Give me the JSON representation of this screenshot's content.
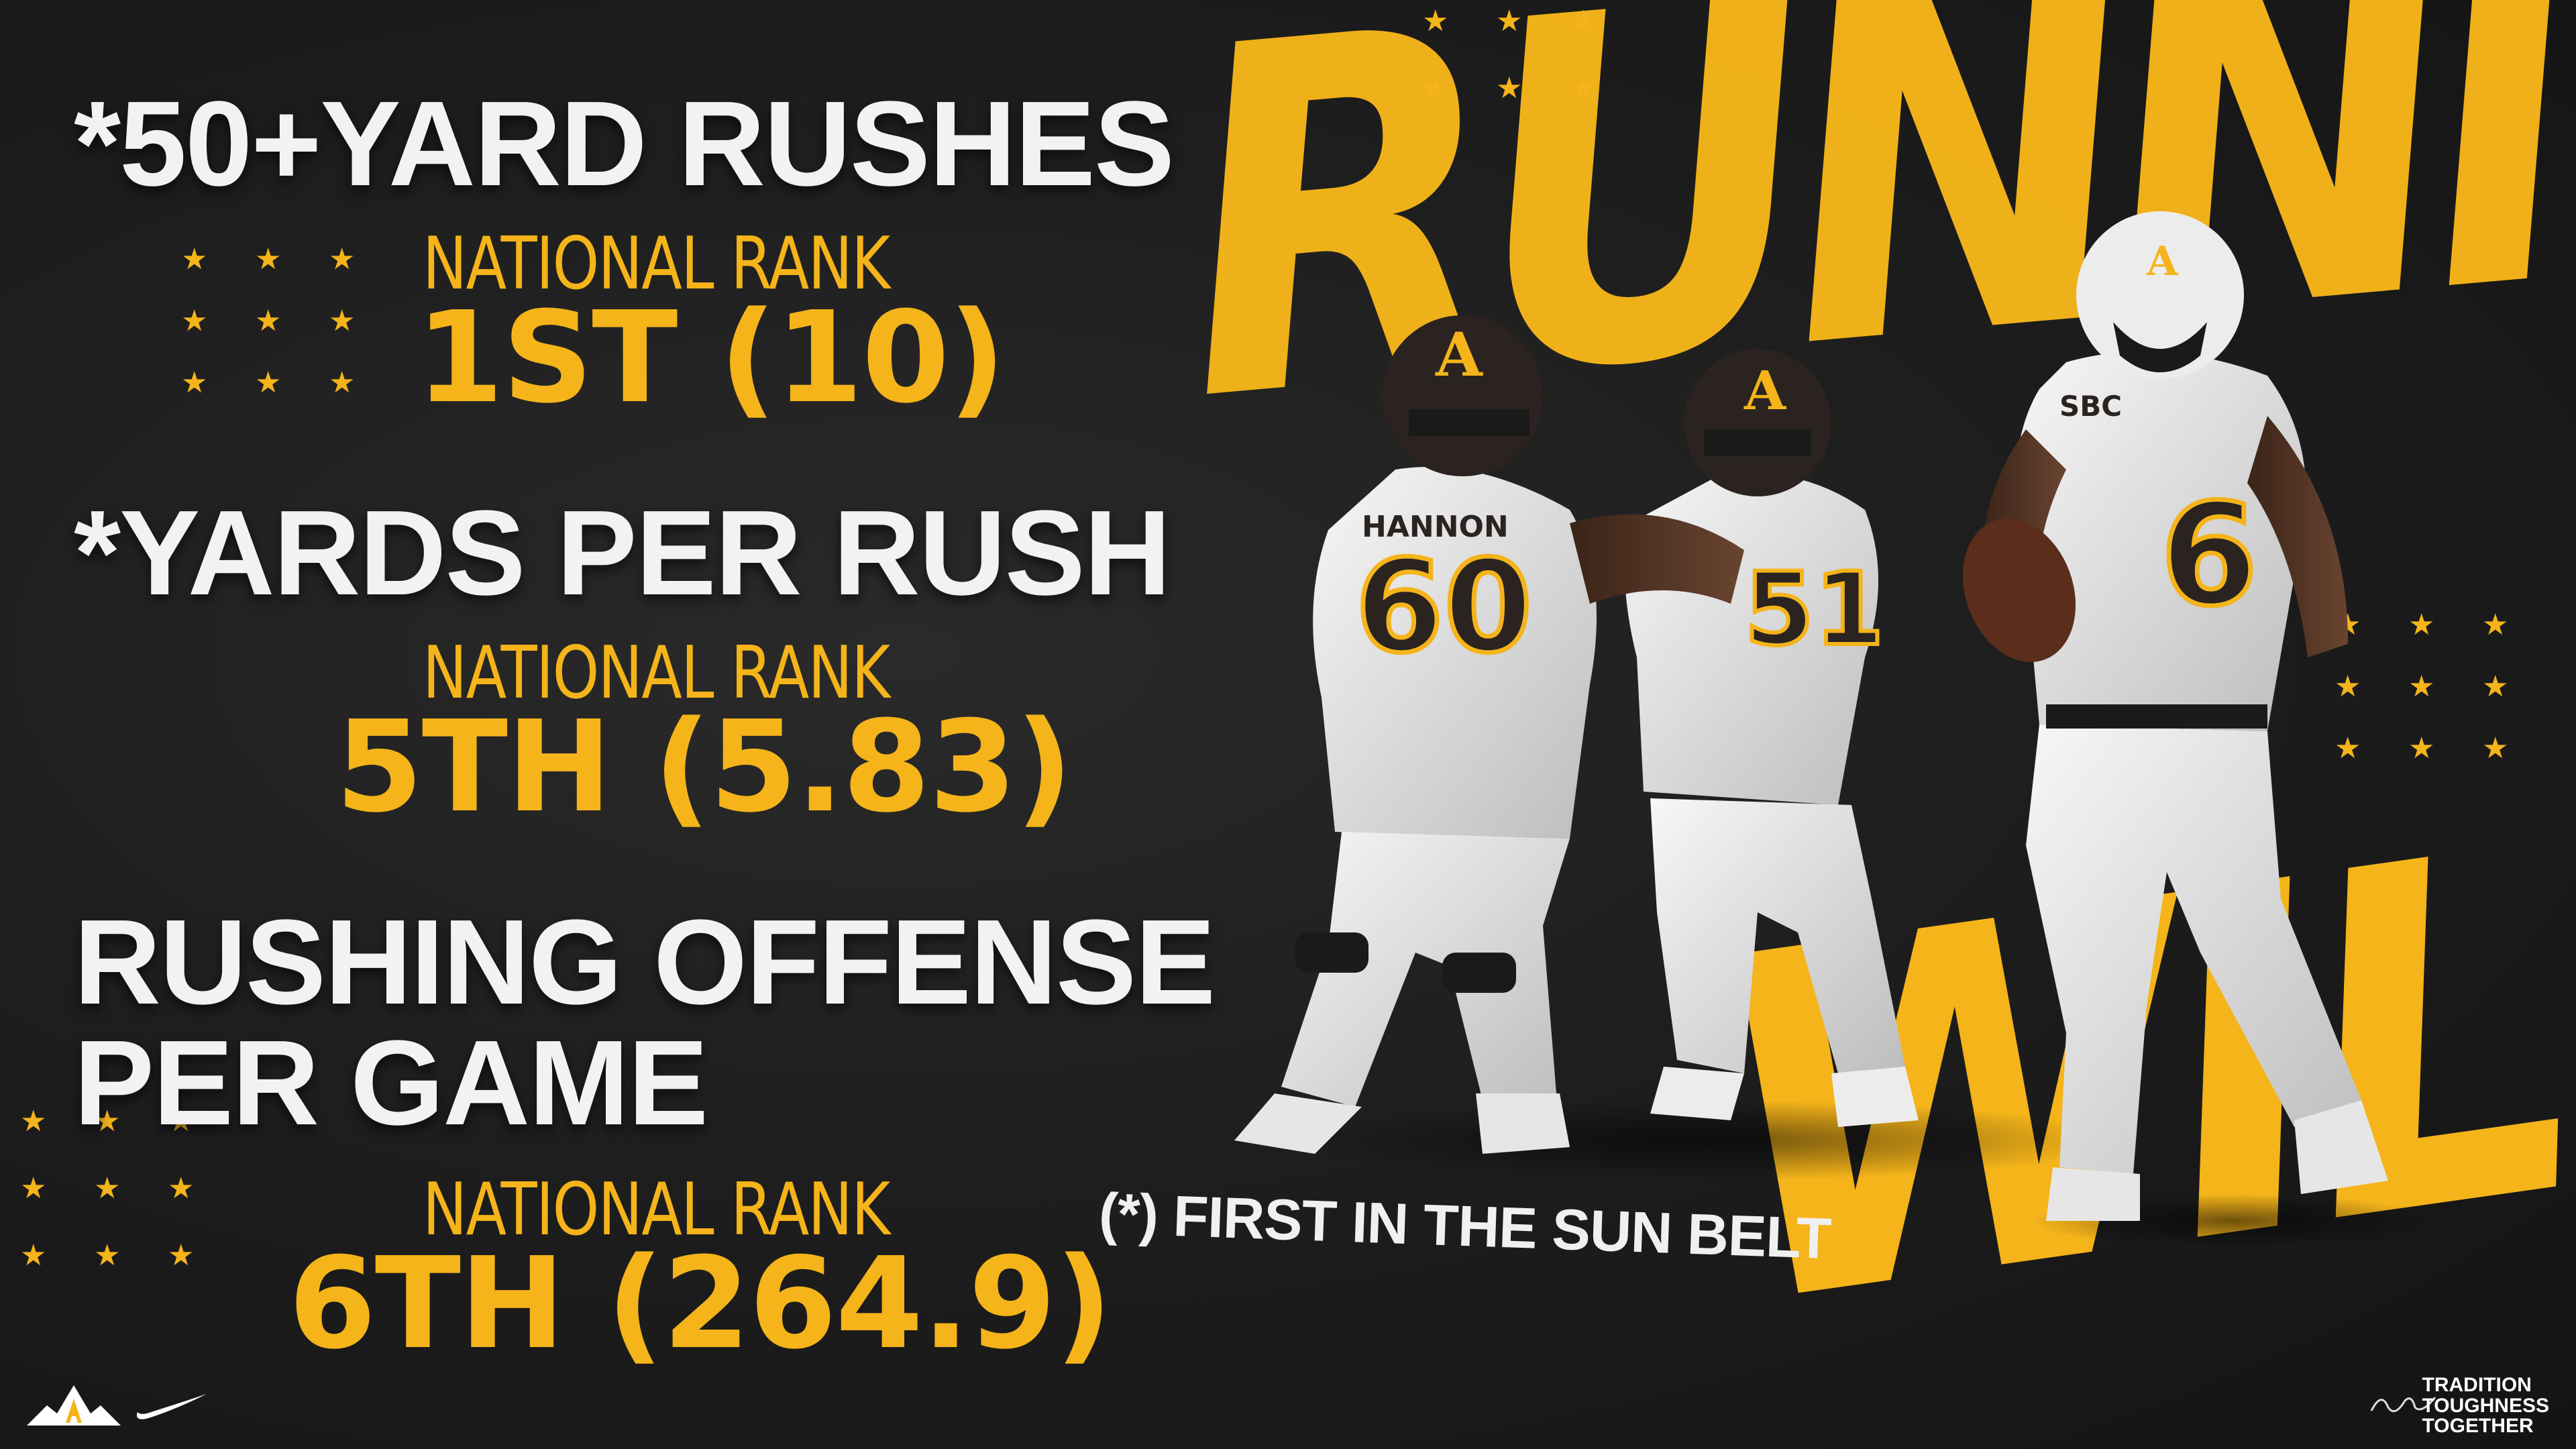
{
  "headline": {
    "word_1": "RUNNING",
    "word_2": "WILD"
  },
  "stats": [
    {
      "title": "*50+YARD RUSHES",
      "rank_label": "NATIONAL RANK",
      "rank_value": "1ST (10)"
    },
    {
      "title": "*YARDS PER RUSH",
      "rank_label": "NATIONAL RANK",
      "rank_value": "5TH (5.83)"
    },
    {
      "title": "RUSHING OFFENSE",
      "title_line_2": "PER GAME",
      "rank_label": "NATIONAL RANK",
      "rank_value": "6TH (264.9)"
    }
  ],
  "footnote": "(*) FIRST IN THE SUN BELT",
  "players": [
    {
      "jersey_number": "60",
      "name_on_jersey": "HANNON",
      "helmet_letter": "A"
    },
    {
      "jersey_number": "51",
      "helmet_letter": "A"
    },
    {
      "jersey_number": "6",
      "chest_patch": "SBC",
      "helmet_letter": "A"
    }
  ],
  "footer": {
    "team_logo_letter": "A",
    "tagline": "TRADITION\nTOUGHNESS\nTOGETHER"
  },
  "colors": {
    "accent": "#f4b41a",
    "background": "#1c1c1c",
    "text_light": "#f2f2f2"
  },
  "icons": [
    "star-icon",
    "mountain-a-logo-icon",
    "swoosh-logo-icon",
    "signature-icon"
  ]
}
